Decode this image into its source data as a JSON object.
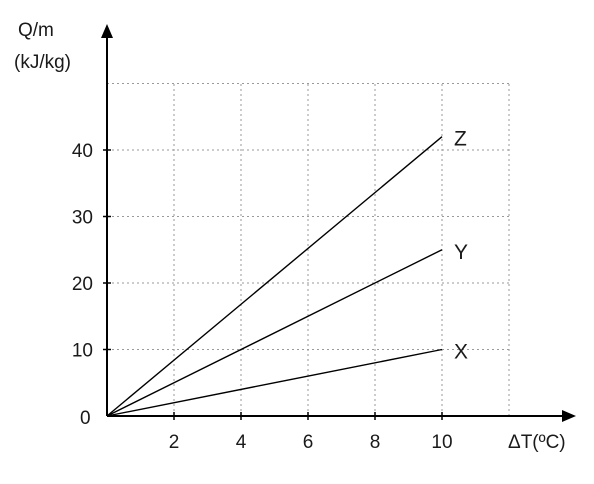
{
  "chart_data": {
    "type": "line",
    "ylabel_line1": "Q/m",
    "ylabel_line2": "(kJ/kg)",
    "xlabel": "ΔT(ºC)",
    "origin_label": "0",
    "xlim": [
      0,
      12
    ],
    "ylim": [
      0,
      50
    ],
    "xticks": [
      2,
      4,
      6,
      8,
      10
    ],
    "yticks": [
      10,
      20,
      30,
      40
    ],
    "grid": true,
    "series": [
      {
        "name": "X",
        "x": [
          0,
          10
        ],
        "y": [
          0,
          10
        ]
      },
      {
        "name": "Y",
        "x": [
          0,
          10
        ],
        "y": [
          0,
          25
        ]
      },
      {
        "name": "Z",
        "x": [
          0,
          10
        ],
        "y": [
          0,
          42
        ]
      }
    ]
  }
}
